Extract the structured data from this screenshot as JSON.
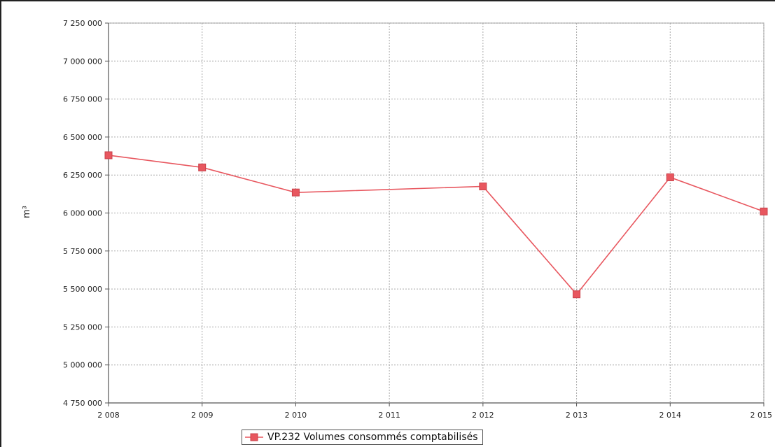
{
  "chart_data": {
    "type": "line",
    "title": "",
    "xlabel": "",
    "ylabel": "m³",
    "x": [
      "2 008",
      "2 009",
      "2 010",
      "2 011",
      "2 012",
      "2 013",
      "2 014",
      "2 015"
    ],
    "y_ticks": [
      "7 250 000",
      "7 000 000",
      "6 750 000",
      "6 500 000",
      "6 250 000",
      "6 000 000",
      "5 750 000",
      "5 500 000",
      "5 250 000",
      "5 000 000",
      "4 750 000"
    ],
    "ylim": [
      4750000,
      7250000
    ],
    "grid": true,
    "legend_position": "bottom",
    "series": [
      {
        "name": "VP.232 Volumes consommés comptabilisés",
        "color": "#e8575f",
        "marker": "square",
        "points": [
          {
            "x": "2 008",
            "y": 6380000
          },
          {
            "x": "2 009",
            "y": 6300000
          },
          {
            "x": "2 010",
            "y": 6135000
          },
          {
            "x": "2 012",
            "y": 6175000
          },
          {
            "x": "2 013",
            "y": 5465000
          },
          {
            "x": "2 014",
            "y": 6235000
          },
          {
            "x": "2 015",
            "y": 6010000
          }
        ]
      }
    ]
  }
}
